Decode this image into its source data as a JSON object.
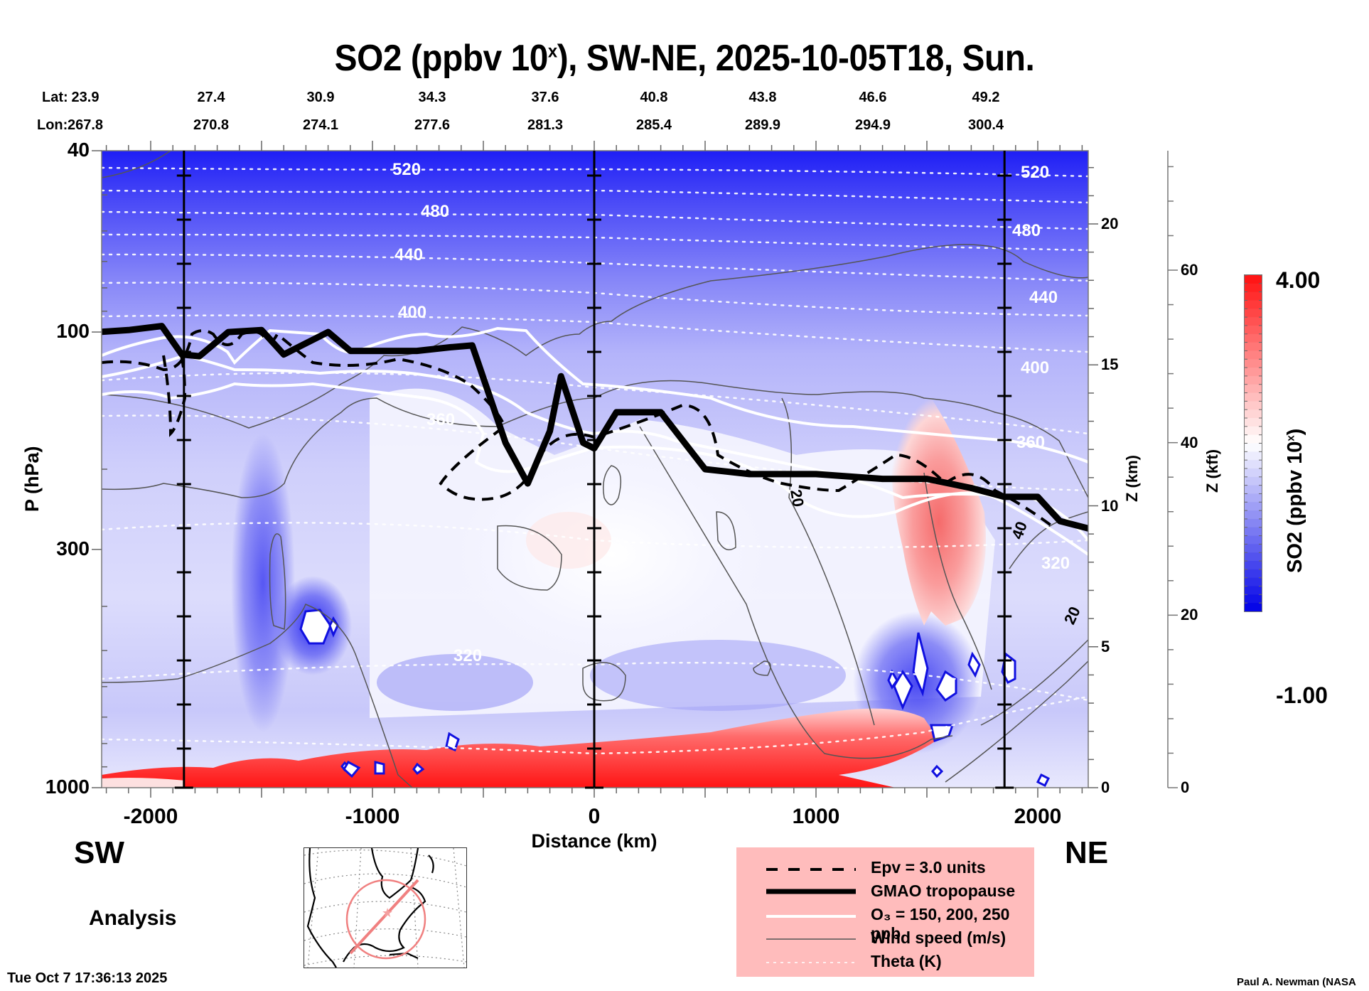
{
  "title": {
    "main": "SO2 (ppbv 10",
    "sup": "x",
    "rest": "), SW-NE, 2025-10-05T18, Sun."
  },
  "coords": {
    "lat_label": "Lat:",
    "lon_label": "Lon:",
    "lat": [
      "23.9",
      "27.4",
      "30.9",
      "34.3",
      "37.6",
      "40.8",
      "43.8",
      "46.6",
      "49.2"
    ],
    "lon": [
      "267.8",
      "270.8",
      "274.1",
      "277.6",
      "281.3",
      "285.4",
      "289.9",
      "294.9",
      "300.4"
    ]
  },
  "labels": {
    "sw": "SW",
    "ne": "NE",
    "analysis": "Analysis",
    "timestamp": "Tue Oct  7 17:36:13 2025",
    "credit": "Paul A. Newman (NASA"
  },
  "legend": {
    "items": [
      {
        "label": "Epv = 3.0 units",
        "style": "dashed-thick"
      },
      {
        "label": "GMAO tropopause",
        "style": "solid-heavy"
      },
      {
        "label": "O₃ = 150, 200, 250 ppb",
        "style": "solid-white"
      },
      {
        "label": "Wind speed (m/s)",
        "style": "solid-thin"
      },
      {
        "label": "Theta (K)",
        "style": "dotted-white"
      }
    ]
  },
  "colors": {
    "legend_bg": "#ffbcbc",
    "so2_low": "#0000e6",
    "so2_mid": "#ffffff",
    "so2_high": "#ff1010",
    "map_track": "#f08080"
  },
  "chart_data": {
    "type": "heatmap",
    "title": "SO2 (ppbv 10^x), SW-NE, 2025-10-05T18, Sun.",
    "xlabel": "Distance (km)",
    "ylabel": "P (hPa)",
    "ylabel_right": "Z (km)",
    "ylabel_right2": "Z (kft)",
    "xlim": [
      -2240,
      2230
    ],
    "ylim": [
      1000,
      40
    ],
    "y_scale": "log",
    "x_ticks": [
      -2000,
      -1000,
      0,
      1000,
      2000
    ],
    "x_tick_labels": [
      "-2000",
      "-1000",
      "0",
      "1000",
      "2000"
    ],
    "y_ticks": [
      40,
      100,
      300,
      1000
    ],
    "y_tick_labels": [
      "40",
      "100",
      "300",
      "1000"
    ],
    "z_km_ticks": [
      0,
      5,
      10,
      15,
      20
    ],
    "z_km_tick_labels": [
      "0",
      "5",
      "10",
      "15",
      "20"
    ],
    "z_kft_ticks": [
      0,
      20,
      40,
      60
    ],
    "z_kft_tick_labels": [
      "0",
      "20",
      "40",
      "60"
    ],
    "colorbar": {
      "label": "SO2 (ppbv 10^x)",
      "min": -1.0,
      "max": 4.0,
      "min_label": "-1.00",
      "max_label": "4.00",
      "levels": 40
    },
    "theta_contours_K": [
      320,
      360,
      400,
      440,
      480,
      520
    ],
    "wind_speed_labels_ms": [
      20,
      40,
      20
    ],
    "vertical_marker_distances_km": [
      -1850,
      0,
      1850
    ],
    "lat_at_ticks": [
      23.9,
      27.4,
      30.9,
      34.3,
      37.6,
      40.8,
      43.8,
      46.6,
      49.2
    ],
    "lon_at_ticks": [
      267.8,
      270.8,
      274.1,
      277.6,
      281.3,
      285.4,
      289.9,
      294.9,
      300.4
    ],
    "tropopause_hPa": [
      [
        -2240,
        100
      ],
      [
        -2100,
        99
      ],
      [
        -1950,
        97
      ],
      [
        -1860,
        112
      ],
      [
        -1780,
        113
      ],
      [
        -1650,
        100
      ],
      [
        -1500,
        99
      ],
      [
        -1400,
        112
      ],
      [
        -1200,
        100
      ],
      [
        -1100,
        110
      ],
      [
        -800,
        110
      ],
      [
        -650,
        108
      ],
      [
        -550,
        107
      ],
      [
        -400,
        175
      ],
      [
        -300,
        215
      ],
      [
        -200,
        165
      ],
      [
        -150,
        125
      ],
      [
        -50,
        175
      ],
      [
        0,
        180
      ],
      [
        100,
        150
      ],
      [
        300,
        150
      ],
      [
        500,
        200
      ],
      [
        700,
        205
      ],
      [
        1000,
        205
      ],
      [
        1300,
        210
      ],
      [
        1500,
        210
      ],
      [
        1700,
        220
      ],
      [
        1850,
        230
      ],
      [
        2000,
        230
      ],
      [
        2100,
        260
      ],
      [
        2230,
        270
      ]
    ],
    "series_note": "Surface SO2 enhancement (red, ~2-4) from -1200 to 1450 km below ~850 hPa; plume near 1500-1650 km up to ~200 hPa; stratosphere low values (blue)"
  }
}
